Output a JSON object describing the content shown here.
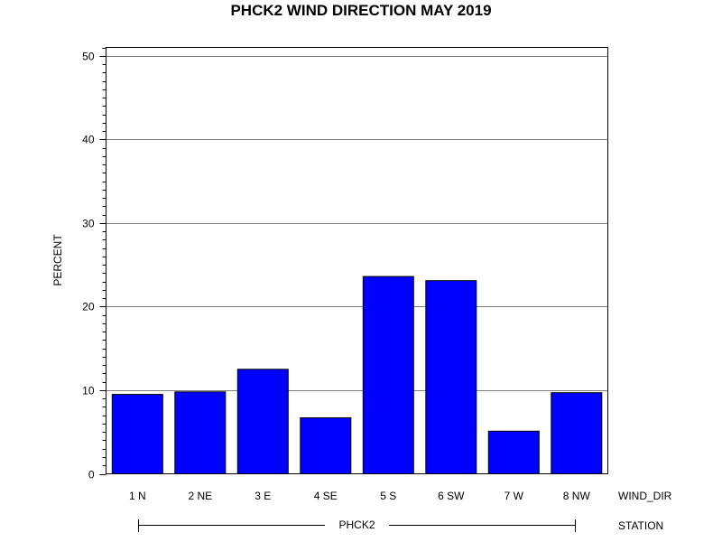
{
  "chart_data": {
    "type": "bar",
    "title": "PHCK2 WIND DIRECTION MAY 2019",
    "ylabel": "PERCENT",
    "xlabel": "WIND_DIR",
    "group_axis_label": "STATION",
    "group_label": "PHCK2",
    "categories": [
      "1 N",
      "2 NE",
      "3 E",
      "4 SE",
      "5 S",
      "6 SW",
      "7 W",
      "8 NW"
    ],
    "values": [
      9.5,
      9.8,
      12.5,
      6.7,
      23.6,
      23.1,
      5.1,
      9.7
    ],
    "ylim": [
      0,
      51
    ],
    "yticks": [
      0,
      10,
      20,
      30,
      40,
      50
    ],
    "grid": true,
    "bar_color": "#0000ff"
  }
}
